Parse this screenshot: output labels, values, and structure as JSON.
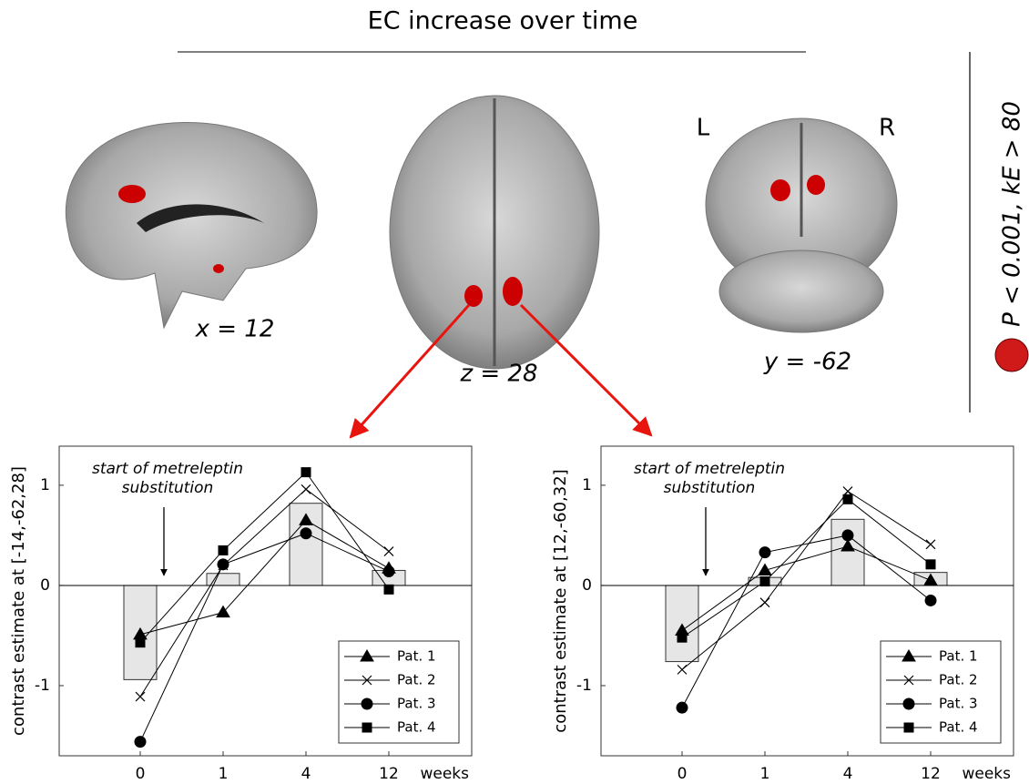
{
  "figure": {
    "title": "EC increase over time",
    "slice_labels": [
      "x = 12",
      "z = 28",
      "y = -62"
    ],
    "orientation": [
      "L",
      "R"
    ],
    "threshold": "P < 0.001, kE > 80"
  },
  "chart_data": [
    {
      "type": "combo",
      "ylabel": "contrast estimate at [-14,-62,28]",
      "xlabel": "weeks",
      "annotation": "start of metreleptin substitution",
      "categories": [
        "0",
        "1",
        "4",
        "12"
      ],
      "values": [
        -0.94,
        0.12,
        0.82,
        0.15
      ],
      "color": "#e6e6e6",
      "series": [
        {
          "name": "Pat. 1",
          "marker": "triangle",
          "color": "#000000",
          "values": [
            -0.49,
            -0.27,
            0.65,
            0.17
          ]
        },
        {
          "name": "Pat. 2",
          "marker": "cross",
          "color": "#000000",
          "values": [
            -1.11,
            0.2,
            0.96,
            0.34
          ]
        },
        {
          "name": "Pat. 3",
          "marker": "circle",
          "color": "#000000",
          "values": [
            -1.56,
            0.21,
            0.52,
            0.14
          ]
        },
        {
          "name": "Pat. 4",
          "marker": "square",
          "color": "#000000",
          "values": [
            -0.57,
            0.35,
            1.13,
            -0.04
          ]
        }
      ],
      "ylim": [
        -1.7,
        1.39
      ],
      "yticks": [
        -1,
        0,
        1
      ],
      "legend": "lower right"
    },
    {
      "type": "combo",
      "ylabel": "contrast estimate at [12,-60,32]",
      "xlabel": "weeks",
      "annotation": "start of metreleptin substitution",
      "categories": [
        "0",
        "1",
        "4",
        "12"
      ],
      "values": [
        -0.76,
        0.08,
        0.66,
        0.13
      ],
      "color": "#e6e6e6",
      "series": [
        {
          "name": "Pat. 1",
          "marker": "triangle",
          "color": "#000000",
          "values": [
            -0.45,
            0.15,
            0.39,
            0.05
          ]
        },
        {
          "name": "Pat. 2",
          "marker": "cross",
          "color": "#000000",
          "values": [
            -0.84,
            -0.17,
            0.94,
            0.41
          ]
        },
        {
          "name": "Pat. 3",
          "marker": "circle",
          "color": "#000000",
          "values": [
            -1.22,
            0.33,
            0.5,
            -0.15
          ]
        },
        {
          "name": "Pat. 4",
          "marker": "square",
          "color": "#000000",
          "values": [
            -0.52,
            0.04,
            0.86,
            0.21
          ]
        }
      ],
      "ylim": [
        -1.7,
        1.39
      ],
      "yticks": [
        -1,
        0,
        1
      ],
      "legend": "lower right"
    }
  ]
}
